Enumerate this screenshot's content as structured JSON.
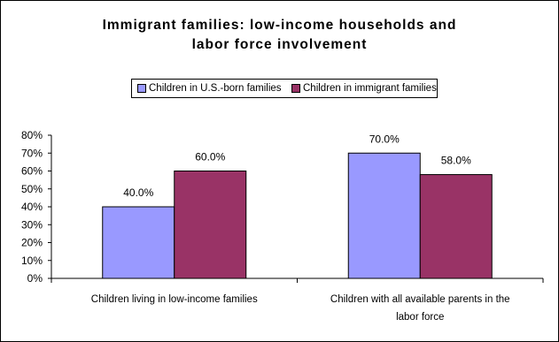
{
  "chart_data": {
    "type": "bar",
    "title": "Immigrant families: low-income households and\nlabor force involvement",
    "categories": [
      "Children living in low-income families",
      "Children with all available parents in the\nlabor force"
    ],
    "series": [
      {
        "name": "Children in U.S.-born families",
        "color": "#9999ff",
        "values": [
          40.0,
          70.0
        ]
      },
      {
        "name": "Children in immigrant families",
        "color": "#993366",
        "values": [
          60.0,
          58.0
        ]
      }
    ],
    "data_labels": [
      [
        "40.0%",
        "70.0%"
      ],
      [
        "60.0%",
        "58.0%"
      ]
    ],
    "y_ticks": [
      "0%",
      "10%",
      "20%",
      "30%",
      "40%",
      "50%",
      "60%",
      "70%",
      "80%"
    ],
    "ylim": [
      0,
      80
    ],
    "xlabel": "",
    "ylabel": "",
    "grid": false,
    "legend_position": "top"
  }
}
